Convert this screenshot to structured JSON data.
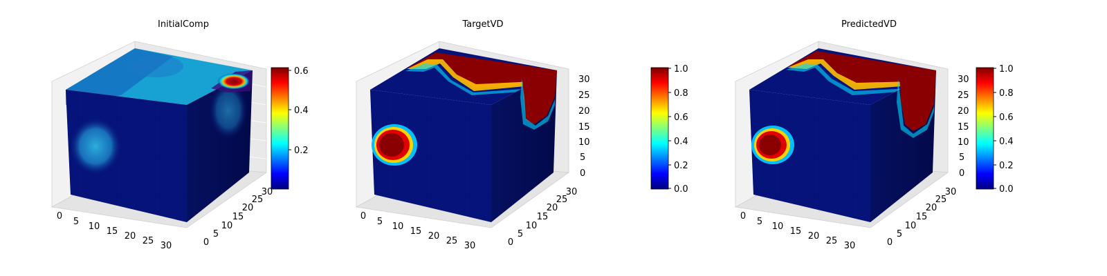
{
  "chart_data": [
    {
      "type": "heatmap",
      "subtype": "3d-voxel",
      "title": "InitialComp",
      "axes": {
        "x": {
          "ticks": [
            0,
            5,
            10,
            15,
            20,
            25,
            30
          ],
          "range": [
            0,
            32
          ]
        },
        "y": {
          "ticks": [
            0,
            5,
            10,
            15,
            20,
            25,
            30
          ],
          "range": [
            0,
            32
          ]
        },
        "z": {
          "ticks": [],
          "range": [
            0,
            32
          ]
        }
      },
      "colorbar": {
        "colormap": "jet",
        "range": [
          0.02,
          0.62
        ],
        "ticks": [
          0.2,
          0.4,
          0.6
        ],
        "tick_labels": [
          "0.2",
          "0.4",
          "0.6"
        ]
      },
      "grid": true
    },
    {
      "type": "heatmap",
      "subtype": "3d-voxel",
      "title": "TargetVD",
      "axes": {
        "x": {
          "ticks": [
            0,
            5,
            10,
            15,
            20,
            25,
            30
          ],
          "range": [
            0,
            32
          ]
        },
        "y": {
          "ticks": [
            0,
            5,
            10,
            15,
            20,
            25,
            30
          ],
          "range": [
            0,
            32
          ]
        },
        "z": {
          "ticks": [
            0,
            5,
            10,
            15,
            20,
            25,
            30
          ],
          "range": [
            0,
            32
          ]
        }
      },
      "colorbar": {
        "colormap": "jet",
        "range": [
          0.0,
          1.0
        ],
        "ticks": [
          0.0,
          0.2,
          0.4,
          0.6,
          0.8,
          1.0
        ],
        "tick_labels": [
          "0.0",
          "0.2",
          "0.4",
          "0.6",
          "0.8",
          "1.0"
        ]
      },
      "grid": true
    },
    {
      "type": "heatmap",
      "subtype": "3d-voxel",
      "title": "PredictedVD",
      "axes": {
        "x": {
          "ticks": [
            0,
            5,
            10,
            15,
            20,
            25,
            30
          ],
          "range": [
            0,
            32
          ]
        },
        "y": {
          "ticks": [
            0,
            5,
            10,
            15,
            20,
            25,
            30
          ],
          "range": [
            0,
            32
          ]
        },
        "z": {
          "ticks": [
            0,
            5,
            10,
            15,
            20,
            25,
            30
          ],
          "range": [
            0,
            32
          ]
        }
      },
      "colorbar": {
        "colormap": "jet",
        "range": [
          0.0,
          1.0
        ],
        "ticks": [
          0.0,
          0.2,
          0.4,
          0.6,
          0.8,
          1.0
        ],
        "tick_labels": [
          "0.0",
          "0.2",
          "0.4",
          "0.6",
          "0.8",
          "1.0"
        ]
      },
      "grid": true
    }
  ],
  "colors": {
    "jet_stops": [
      "#00007f",
      "#0000ff",
      "#007fff",
      "#00ffff",
      "#7fff7f",
      "#ffff00",
      "#ff7f00",
      "#ff0000",
      "#7f0000"
    ],
    "cube_body": "#05137a",
    "initial_high": "#17a7d6",
    "target_high": "#8a0000"
  }
}
